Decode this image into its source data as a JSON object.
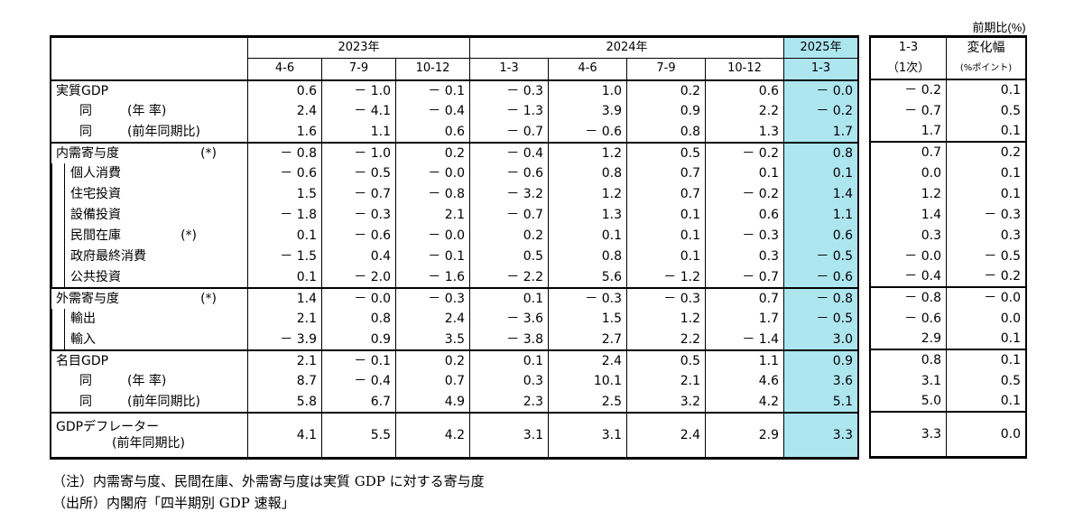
{
  "unit_note": "前期比(%)",
  "header": {
    "years": [
      {
        "label": "2023年",
        "span": 3
      },
      {
        "label": "2024年",
        "span": 4
      },
      {
        "label": "2025年",
        "span": 1
      }
    ],
    "quarters": [
      "4-6",
      "7-9",
      "10-12",
      "1-3",
      "4-6",
      "7-9",
      "10-12",
      "1-3"
    ],
    "side_col1_line1": "1-3",
    "side_col1_line2": "（1次）",
    "side_col2_line1": "変化幅",
    "side_col2_line2": "(%ポイント)"
  },
  "rows": [
    {
      "label": "実質GDP",
      "sub": "",
      "indent": 0,
      "values": [
        "0.6",
        "－ 1.0",
        "－ 0.1",
        "－ 0.3",
        "1.0",
        "0.2",
        "0.6",
        "－ 0.0"
      ],
      "first": "－ 0.2",
      "change": "0.1"
    },
    {
      "label": "同",
      "sub": "(年 率)",
      "indent": 1,
      "values": [
        "2.4",
        "－ 4.1",
        "－ 0.4",
        "－ 1.3",
        "3.9",
        "0.9",
        "2.2",
        "－ 0.2"
      ],
      "first": "－ 0.7",
      "change": "0.5"
    },
    {
      "label": "同",
      "sub": "(前年同期比)",
      "indent": 1,
      "values": [
        "1.6",
        "1.1",
        "0.6",
        "－ 0.7",
        "－ 0.6",
        "0.8",
        "1.3",
        "1.7"
      ],
      "first": "1.7",
      "change": "0.1"
    },
    {
      "label": "内需寄与度",
      "sub": "(*)",
      "indent": 0,
      "values": [
        "－ 0.8",
        "－ 1.0",
        "0.2",
        "－ 0.4",
        "1.2",
        "0.5",
        "－ 0.2",
        "0.8"
      ],
      "first": "0.7",
      "change": "0.2"
    },
    {
      "label": "個人消費",
      "sub": "",
      "indent": 2,
      "values": [
        "－ 0.6",
        "－ 0.5",
        "－ 0.0",
        "－ 0.6",
        "0.8",
        "0.7",
        "0.1",
        "0.1"
      ],
      "first": "0.0",
      "change": "0.1"
    },
    {
      "label": "住宅投資",
      "sub": "",
      "indent": 2,
      "values": [
        "1.5",
        "－ 0.7",
        "－ 0.8",
        "－ 3.2",
        "1.2",
        "0.7",
        "－ 0.2",
        "1.4"
      ],
      "first": "1.2",
      "change": "0.1"
    },
    {
      "label": "設備投資",
      "sub": "",
      "indent": 2,
      "values": [
        "－ 1.8",
        "－ 0.3",
        "2.1",
        "－ 0.7",
        "1.3",
        "0.1",
        "0.6",
        "1.1"
      ],
      "first": "1.4",
      "change": "－ 0.3"
    },
    {
      "label": "民間在庫",
      "sub": "(*)",
      "indent": 2,
      "values": [
        "0.1",
        "－ 0.6",
        "－ 0.0",
        "0.2",
        "0.1",
        "0.1",
        "－ 0.3",
        "0.6"
      ],
      "first": "0.3",
      "change": "0.3"
    },
    {
      "label": "政府最終消費",
      "sub": "",
      "indent": 2,
      "values": [
        "－ 1.5",
        "0.4",
        "－ 0.1",
        "0.5",
        "0.8",
        "0.1",
        "0.3",
        "－ 0.5"
      ],
      "first": "－ 0.0",
      "change": "－ 0.5"
    },
    {
      "label": "公共投資",
      "sub": "",
      "indent": 2,
      "values": [
        "0.1",
        "－ 2.0",
        "－ 1.6",
        "－ 2.2",
        "5.6",
        "－ 1.2",
        "－ 0.7",
        "－ 0.6"
      ],
      "first": "－ 0.4",
      "change": "－ 0.2"
    },
    {
      "label": "外需寄与度",
      "sub": "(*)",
      "indent": 0,
      "values": [
        "1.4",
        "－ 0.0",
        "－ 0.3",
        "0.1",
        "－ 0.3",
        "－ 0.3",
        "0.7",
        "－ 0.8"
      ],
      "first": "－ 0.8",
      "change": "－ 0.0"
    },
    {
      "label": "輸出",
      "sub": "",
      "indent": 2,
      "values": [
        "2.1",
        "0.8",
        "2.4",
        "－ 3.6",
        "1.5",
        "1.2",
        "1.7",
        "－ 0.5"
      ],
      "first": "－ 0.6",
      "change": "0.0"
    },
    {
      "label": "輸入",
      "sub": "",
      "indent": 2,
      "values": [
        "－ 3.9",
        "0.9",
        "3.5",
        "－ 3.8",
        "2.7",
        "2.2",
        "－ 1.4",
        "3.0"
      ],
      "first": "2.9",
      "change": "0.1"
    },
    {
      "label": "名目GDP",
      "sub": "",
      "indent": 0,
      "values": [
        "2.1",
        "－ 0.1",
        "0.2",
        "0.1",
        "2.4",
        "0.5",
        "1.1",
        "0.9"
      ],
      "first": "0.8",
      "change": "0.1"
    },
    {
      "label": "同",
      "sub": "(年 率)",
      "indent": 1,
      "values": [
        "8.7",
        "－ 0.4",
        "0.7",
        "0.3",
        "10.1",
        "2.1",
        "4.6",
        "3.6"
      ],
      "first": "3.1",
      "change": "0.5"
    },
    {
      "label": "同",
      "sub": "(前年同期比)",
      "indent": 1,
      "values": [
        "5.8",
        "6.7",
        "4.9",
        "2.3",
        "2.5",
        "3.2",
        "4.2",
        "5.1"
      ],
      "first": "5.0",
      "change": "0.1"
    },
    {
      "label": "GDPデフレーター",
      "sub": "(前年同期比)",
      "indent": 0,
      "tall": true,
      "values": [
        "4.1",
        "5.5",
        "4.2",
        "3.1",
        "3.1",
        "2.4",
        "2.9",
        "3.3"
      ],
      "first": "3.3",
      "change": "0.0"
    }
  ],
  "notes": [
    "（注）内需寄与度、民間在庫、外需寄与度は実質 GDP に対する寄与度",
    "（出所）内閣府「四半期別 GDP 速報」"
  ]
}
